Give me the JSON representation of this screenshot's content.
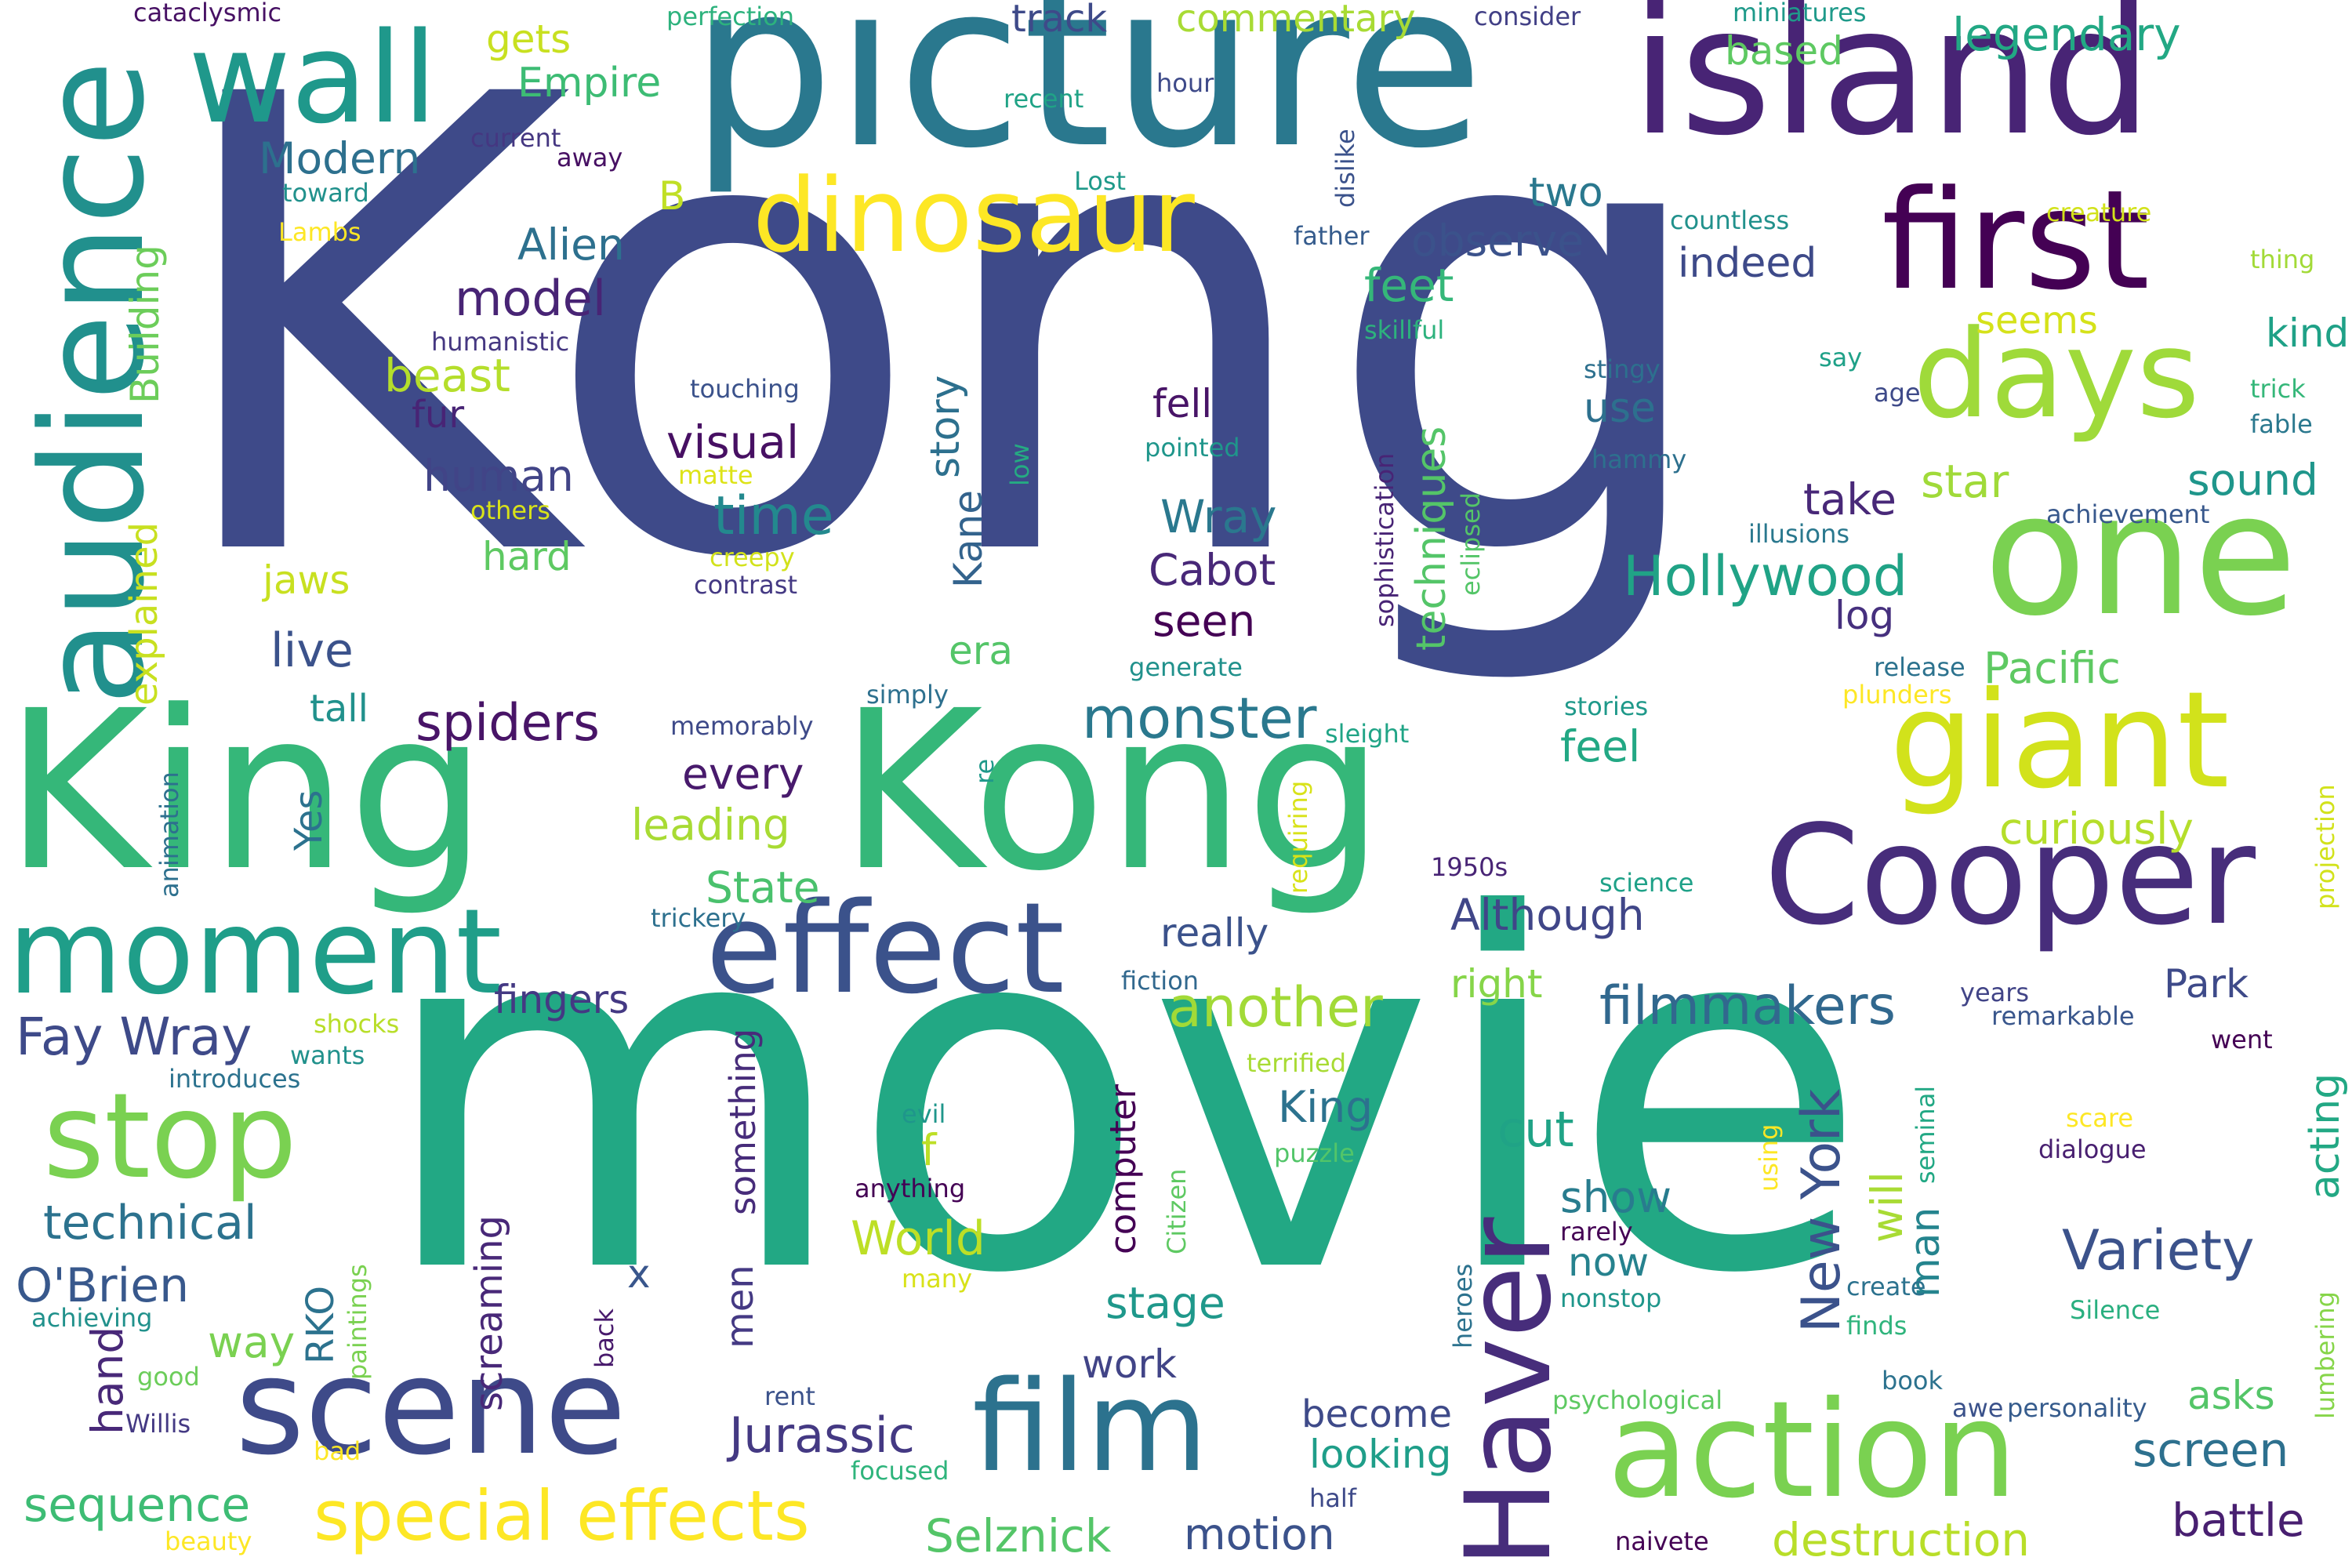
{
  "words": [
    {
      "id": "kong-big",
      "text": "Kong",
      "color": "#3e4a89"
    },
    {
      "id": "movie",
      "text": "movie",
      "color": "#22a884"
    },
    {
      "id": "picture",
      "text": "picture",
      "color": "#2a788e"
    },
    {
      "id": "island",
      "text": "island",
      "color": "#482475"
    },
    {
      "id": "king-1",
      "text": "King",
      "color": "#35b779"
    },
    {
      "id": "kong-2",
      "text": "Kong",
      "color": "#35b779"
    },
    {
      "id": "audience",
      "text": "audience",
      "color": "#21908d"
    },
    {
      "id": "wall",
      "text": "wall",
      "color": "#1f988b"
    },
    {
      "id": "dinosaur",
      "text": "dinosaur",
      "color": "#fde725"
    },
    {
      "id": "first",
      "text": "first",
      "color": "#440154"
    },
    {
      "id": "days",
      "text": "days",
      "color": "#9fda3a"
    },
    {
      "id": "one",
      "text": "one",
      "color": "#7ad151"
    },
    {
      "id": "giant",
      "text": "giant",
      "color": "#d2e21b"
    },
    {
      "id": "cooper",
      "text": "Cooper",
      "color": "#472d7b"
    },
    {
      "id": "moment",
      "text": "moment",
      "color": "#1f9e89"
    },
    {
      "id": "effect",
      "text": "effect",
      "color": "#3b528b"
    },
    {
      "id": "scene",
      "text": "scene",
      "color": "#3e4a89"
    },
    {
      "id": "film",
      "text": "film",
      "color": "#2c728e"
    },
    {
      "id": "action",
      "text": "action",
      "color": "#7ad151"
    },
    {
      "id": "stop",
      "text": "stop",
      "color": "#7ad151"
    },
    {
      "id": "haver",
      "text": "Haver",
      "color": "#472d7b"
    },
    {
      "id": "special-effects",
      "text": "special effects",
      "color": "#fde725"
    },
    {
      "id": "hollywood",
      "text": "Hollywood",
      "color": "#20a386"
    },
    {
      "id": "another",
      "text": "another",
      "color": "#a2da37"
    },
    {
      "id": "monster",
      "text": "monster",
      "color": "#2a788e"
    },
    {
      "id": "variety",
      "text": "Variety",
      "color": "#3b528b"
    },
    {
      "id": "filmmakers",
      "text": "filmmakers",
      "color": "#31688e"
    },
    {
      "id": "new-york",
      "text": "New York",
      "color": "#3b528b"
    },
    {
      "id": "fay-wray",
      "text": "Fay Wray",
      "color": "#3e4a89"
    },
    {
      "id": "technical",
      "text": "technical",
      "color": "#2c728e"
    },
    {
      "id": "obrien",
      "text": "O'Brien",
      "color": "#38588c"
    },
    {
      "id": "sequence",
      "text": "sequence",
      "color": "#3dbc74"
    },
    {
      "id": "jurassic",
      "text": "Jurassic",
      "color": "#443983"
    },
    {
      "id": "selznick",
      "text": "Selznick",
      "color": "#54c568"
    },
    {
      "id": "motion",
      "text": "motion",
      "color": "#3b528b"
    },
    {
      "id": "destruction",
      "text": "destruction",
      "color": "#b8de29"
    },
    {
      "id": "battle",
      "text": "battle",
      "color": "#481f70"
    },
    {
      "id": "screen",
      "text": "screen",
      "color": "#2d708e"
    },
    {
      "id": "spiders",
      "text": "spiders",
      "color": "#481467"
    },
    {
      "id": "visual",
      "text": "visual",
      "color": "#471063"
    },
    {
      "id": "time",
      "text": "time",
      "color": "#23898e"
    },
    {
      "id": "model",
      "text": "model",
      "color": "#482475"
    },
    {
      "id": "human",
      "text": "human",
      "color": "#414487"
    },
    {
      "id": "live",
      "text": "live",
      "color": "#3b528b"
    },
    {
      "id": "beast",
      "text": "beast",
      "color": "#b5de2b"
    },
    {
      "id": "alien",
      "text": "Alien",
      "color": "#2d708e"
    },
    {
      "id": "modern",
      "text": "Modern",
      "color": "#2d708e"
    },
    {
      "id": "empire",
      "text": "Empire",
      "color": "#3dbc74"
    },
    {
      "id": "gets",
      "text": "gets",
      "color": "#c8e020"
    },
    {
      "id": "track",
      "text": "track",
      "color": "#3e4a89"
    },
    {
      "id": "commentary",
      "text": "commentary",
      "color": "#a8db34"
    },
    {
      "id": "legendary",
      "text": "legendary",
      "color": "#22a884"
    },
    {
      "id": "based",
      "text": "based",
      "color": "#5ec962"
    },
    {
      "id": "observe",
      "text": "observe",
      "color": "#3b528b"
    },
    {
      "id": "two",
      "text": "two",
      "color": "#2a788e"
    },
    {
      "id": "feet",
      "text": "feet",
      "color": "#35b779"
    },
    {
      "id": "indeed",
      "text": "indeed",
      "color": "#3e4a89"
    },
    {
      "id": "seems",
      "text": "seems",
      "color": "#d5e21a"
    },
    {
      "id": "kind",
      "text": "kind",
      "color": "#1fa187"
    },
    {
      "id": "star",
      "text": "star",
      "color": "#a0da39"
    },
    {
      "id": "sound",
      "text": "sound",
      "color": "#1f968b"
    },
    {
      "id": "take",
      "text": "take",
      "color": "#482878"
    },
    {
      "id": "log",
      "text": "log",
      "color": "#46307e"
    },
    {
      "id": "pacific",
      "text": "Pacific",
      "color": "#5ec962"
    },
    {
      "id": "curiously",
      "text": "curiously",
      "color": "#b5de2b"
    },
    {
      "id": "wray",
      "text": "Wray",
      "color": "#2a788e"
    },
    {
      "id": "cabot",
      "text": "Cabot",
      "color": "#482878"
    },
    {
      "id": "seen",
      "text": "seen",
      "color": "#440154"
    },
    {
      "id": "fell",
      "text": "fell",
      "color": "#481467"
    },
    {
      "id": "use",
      "text": "use",
      "color": "#2d708e"
    },
    {
      "id": "feel",
      "text": "feel",
      "color": "#22a884"
    },
    {
      "id": "era",
      "text": "era",
      "color": "#54c568"
    },
    {
      "id": "although",
      "text": "Although",
      "color": "#404688"
    },
    {
      "id": "right",
      "text": "right",
      "color": "#86d549"
    },
    {
      "id": "really",
      "text": "really",
      "color": "#3b528b"
    },
    {
      "id": "park",
      "text": "Park",
      "color": "#3e4a89"
    },
    {
      "id": "every",
      "text": "every",
      "color": "#481a6c"
    },
    {
      "id": "leading",
      "text": "leading",
      "color": "#a8db34"
    },
    {
      "id": "state",
      "text": "State",
      "color": "#4ac16d"
    },
    {
      "id": "fingers",
      "text": "fingers",
      "color": "#443983"
    },
    {
      "id": "cut",
      "text": "cut",
      "color": "#20a386"
    },
    {
      "id": "show",
      "text": "show",
      "color": "#287c8e"
    },
    {
      "id": "king-small",
      "text": "King",
      "color": "#2c728e"
    },
    {
      "id": "stage",
      "text": "stage",
      "color": "#1f988b"
    },
    {
      "id": "work",
      "text": "work",
      "color": "#414487"
    },
    {
      "id": "become",
      "text": "become",
      "color": "#3e4a89"
    },
    {
      "id": "looking",
      "text": "looking",
      "color": "#1f9e89"
    },
    {
      "id": "world",
      "text": "World",
      "color": "#bddf26"
    },
    {
      "id": "way",
      "text": "way",
      "color": "#7ad151"
    },
    {
      "id": "hand",
      "text": "hand",
      "color": "#482878"
    },
    {
      "id": "asks",
      "text": "asks",
      "color": "#54c568"
    },
    {
      "id": "now",
      "text": "now",
      "color": "#26828e"
    },
    {
      "id": "hard",
      "text": "hard",
      "color": "#5ec962"
    },
    {
      "id": "jaws",
      "text": "jaws",
      "color": "#c8e020"
    },
    {
      "id": "tall",
      "text": "tall",
      "color": "#21918c"
    },
    {
      "id": "fur",
      "text": "fur",
      "color": "#482475"
    },
    {
      "id": "b",
      "text": "B",
      "color": "#c0df25"
    },
    {
      "id": "f",
      "text": "f",
      "color": "#bddf26"
    },
    {
      "id": "x",
      "text": "x",
      "color": "#39568c"
    },
    {
      "id": "building",
      "text": "Building",
      "color": "#6ccd5a"
    },
    {
      "id": "explained",
      "text": "explained",
      "color": "#c8e020"
    },
    {
      "id": "story",
      "text": "story",
      "color": "#2d708e"
    },
    {
      "id": "kane",
      "text": "Kane",
      "color": "#33638d"
    },
    {
      "id": "yes",
      "text": "Yes",
      "color": "#2c728e"
    },
    {
      "id": "rko",
      "text": "RKO",
      "color": "#2c728e"
    },
    {
      "id": "men",
      "text": "men",
      "color": "#443983"
    },
    {
      "id": "something",
      "text": "something",
      "color": "#472c7a"
    },
    {
      "id": "screaming",
      "text": "screaming",
      "color": "#482878"
    },
    {
      "id": "computer",
      "text": "computer",
      "color": "#440154"
    },
    {
      "id": "techniques",
      "text": "techniques",
      "color": "#54c568"
    },
    {
      "id": "acting",
      "text": "acting",
      "color": "#22a884"
    },
    {
      "id": "will",
      "text": "will",
      "color": "#a8db34"
    },
    {
      "id": "man",
      "text": "man",
      "color": "#25848e"
    },
    {
      "id": "cataclysmic",
      "text": "cataclysmic",
      "color": "#471164"
    },
    {
      "id": "perfection",
      "text": "perfection",
      "color": "#2db27d"
    },
    {
      "id": "consider",
      "text": "consider",
      "color": "#424086"
    },
    {
      "id": "miniatures",
      "text": "miniatures",
      "color": "#1f9a8a"
    },
    {
      "id": "hour",
      "text": "hour",
      "color": "#3e4a89"
    },
    {
      "id": "recent",
      "text": "recent",
      "color": "#20a386"
    },
    {
      "id": "current",
      "text": "current",
      "color": "#453781"
    },
    {
      "id": "away",
      "text": "away",
      "color": "#471063"
    },
    {
      "id": "toward",
      "text": "toward",
      "color": "#21918c"
    },
    {
      "id": "lambs",
      "text": "Lambs",
      "color": "#fde725"
    },
    {
      "id": "lost",
      "text": "Lost",
      "color": "#1f9a8a"
    },
    {
      "id": "father",
      "text": "father",
      "color": "#365c8d"
    },
    {
      "id": "countless",
      "text": "countless",
      "color": "#21918c"
    },
    {
      "id": "creature",
      "text": "creature",
      "color": "#d2e21b"
    },
    {
      "id": "thing",
      "text": "thing",
      "color": "#a2da37"
    },
    {
      "id": "trick",
      "text": "trick",
      "color": "#35b779"
    },
    {
      "id": "fable",
      "text": "fable",
      "color": "#2a788e"
    },
    {
      "id": "say",
      "text": "say",
      "color": "#1fa188"
    },
    {
      "id": "age",
      "text": "age",
      "color": "#3e4a89"
    },
    {
      "id": "skillful",
      "text": "skillful",
      "color": "#2db27d"
    },
    {
      "id": "stingy",
      "text": "stingy",
      "color": "#2d708e"
    },
    {
      "id": "hammy",
      "text": "hammy",
      "color": "#2d708e"
    },
    {
      "id": "humanistic",
      "text": "humanistic",
      "color": "#453781"
    },
    {
      "id": "touching",
      "text": "touching",
      "color": "#3b528b"
    },
    {
      "id": "matte",
      "text": "matte",
      "color": "#dde318"
    },
    {
      "id": "others",
      "text": "others",
      "color": "#d8e219"
    },
    {
      "id": "creepy",
      "text": "creepy",
      "color": "#d2e21b"
    },
    {
      "id": "contrast",
      "text": "contrast",
      "color": "#443983"
    },
    {
      "id": "pointed",
      "text": "pointed",
      "color": "#1f968b"
    },
    {
      "id": "illusions",
      "text": "illusions",
      "color": "#2a788e"
    },
    {
      "id": "achievement",
      "text": "achievement",
      "color": "#38588c"
    },
    {
      "id": "release",
      "text": "release",
      "color": "#2c728e"
    },
    {
      "id": "plunders",
      "text": "plunders",
      "color": "#fde725"
    },
    {
      "id": "generate",
      "text": "generate",
      "color": "#21918c"
    },
    {
      "id": "simply",
      "text": "simply",
      "color": "#2d708e"
    },
    {
      "id": "memorably",
      "text": "memorably",
      "color": "#3e4a89"
    },
    {
      "id": "sleight",
      "text": "sleight",
      "color": "#20a486"
    },
    {
      "id": "stories",
      "text": "stories",
      "color": "#1f998a"
    },
    {
      "id": "1950s",
      "text": "1950s",
      "color": "#482475"
    },
    {
      "id": "science",
      "text": "science",
      "color": "#1fa188"
    },
    {
      "id": "trickery",
      "text": "trickery",
      "color": "#2d708e"
    },
    {
      "id": "fiction",
      "text": "fiction",
      "color": "#31688e"
    },
    {
      "id": "years",
      "text": "years",
      "color": "#414487"
    },
    {
      "id": "remarkable",
      "text": "remarkable",
      "color": "#39568c"
    },
    {
      "id": "went",
      "text": "went",
      "color": "#440154"
    },
    {
      "id": "shocks",
      "text": "shocks",
      "color": "#b8de29"
    },
    {
      "id": "wants",
      "text": "wants",
      "color": "#21918c"
    },
    {
      "id": "introduces",
      "text": "introduces",
      "color": "#2c728e"
    },
    {
      "id": "terrified",
      "text": "terrified",
      "color": "#a8db34"
    },
    {
      "id": "evil",
      "text": "evil",
      "color": "#1f968b"
    },
    {
      "id": "anything",
      "text": "anything",
      "color": "#440154"
    },
    {
      "id": "many",
      "text": "many",
      "color": "#d8e219"
    },
    {
      "id": "puzzle",
      "text": "puzzle",
      "color": "#52c569"
    },
    {
      "id": "scare",
      "text": "scare",
      "color": "#fde725"
    },
    {
      "id": "dialogue",
      "text": "dialogue",
      "color": "#481f70"
    },
    {
      "id": "rarely",
      "text": "rarely",
      "color": "#440154"
    },
    {
      "id": "nonstop",
      "text": "nonstop",
      "color": "#1f968b"
    },
    {
      "id": "create",
      "text": "create",
      "color": "#2c728e"
    },
    {
      "id": "finds",
      "text": "finds",
      "color": "#2fb47c"
    },
    {
      "id": "silence",
      "text": "Silence",
      "color": "#29af7f"
    },
    {
      "id": "achieving",
      "text": "achieving",
      "color": "#21918c"
    },
    {
      "id": "good",
      "text": "good",
      "color": "#6ccd5a"
    },
    {
      "id": "willis",
      "text": "Willis",
      "color": "#443983"
    },
    {
      "id": "bad",
      "text": "bad",
      "color": "#fde725"
    },
    {
      "id": "beauty",
      "text": "beauty",
      "color": "#fde725"
    },
    {
      "id": "rent",
      "text": "rent",
      "color": "#3b528b"
    },
    {
      "id": "focused",
      "text": "focused",
      "color": "#2fb47c"
    },
    {
      "id": "half",
      "text": "half",
      "color": "#3e4a89"
    },
    {
      "id": "naivete",
      "text": "naivete",
      "color": "#440154"
    },
    {
      "id": "psychological",
      "text": "psychological",
      "color": "#5ec962"
    },
    {
      "id": "book",
      "text": "book",
      "color": "#2c728e"
    },
    {
      "id": "awe",
      "text": "awe",
      "color": "#3b528b"
    },
    {
      "id": "personality",
      "text": "personality",
      "color": "#365c8d"
    },
    {
      "id": "lumbering",
      "text": "lumbering",
      "color": "#86d549"
    },
    {
      "id": "projection",
      "text": "projection",
      "color": "#d2e21b"
    },
    {
      "id": "seminal",
      "text": "seminal",
      "color": "#22a884"
    },
    {
      "id": "using",
      "text": "using",
      "color": "#fde725"
    },
    {
      "id": "heroes",
      "text": "heroes",
      "color": "#2c728e"
    },
    {
      "id": "back",
      "text": "back",
      "color": "#481a6c"
    },
    {
      "id": "citizen",
      "text": "Citizen",
      "color": "#5ec962"
    },
    {
      "id": "paintings",
      "text": "paintings",
      "color": "#7ad151"
    },
    {
      "id": "animation",
      "text": "animation",
      "color": "#2d708e"
    },
    {
      "id": "re",
      "text": "re",
      "color": "#1f998a"
    },
    {
      "id": "requiring",
      "text": "requiring",
      "color": "#d8e219"
    },
    {
      "id": "low",
      "text": "low",
      "color": "#25ab82"
    },
    {
      "id": "dislike",
      "text": "dislike",
      "color": "#3b528b"
    },
    {
      "id": "sophistication",
      "text": "sophistication",
      "color": "#482475"
    },
    {
      "id": "eclipsed",
      "text": "eclipsed",
      "color": "#54c568"
    }
  ]
}
